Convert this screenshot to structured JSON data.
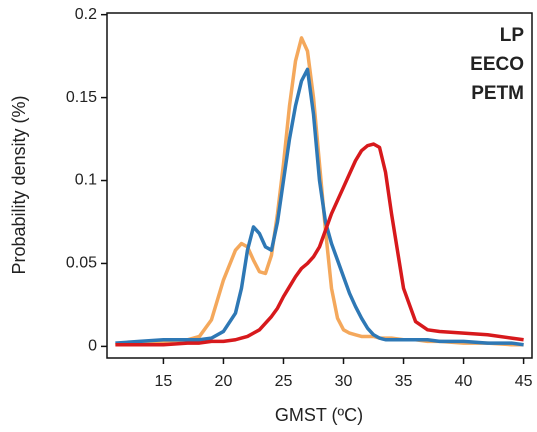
{
  "chart_data": {
    "type": "line",
    "xlabel": "GMST (ºC)",
    "ylabel": "Probability density (%)",
    "x": [
      11,
      13,
      15,
      17,
      18,
      19,
      20,
      21,
      21.5,
      22,
      22.5,
      23,
      23.5,
      24,
      24.5,
      25,
      25.5,
      26,
      26.5,
      27,
      27.5,
      28,
      28.5,
      29,
      29.5,
      30,
      30.5,
      31,
      31.5,
      32,
      32.5,
      33,
      33.5,
      34,
      35,
      36,
      37,
      38,
      40,
      42,
      44,
      45
    ],
    "series": [
      {
        "name": "LP",
        "color": "#f4a85c",
        "values": [
          0.001,
          0.002,
          0.003,
          0.004,
          0.006,
          0.016,
          0.04,
          0.058,
          0.062,
          0.06,
          0.052,
          0.045,
          0.044,
          0.055,
          0.08,
          0.11,
          0.145,
          0.172,
          0.186,
          0.178,
          0.15,
          0.11,
          0.07,
          0.035,
          0.017,
          0.01,
          0.008,
          0.007,
          0.006,
          0.006,
          0.006,
          0.005,
          0.005,
          0.005,
          0.004,
          0.004,
          0.003,
          0.003,
          0.002,
          0.002,
          0.001,
          0.001
        ]
      },
      {
        "name": "EECO",
        "color": "#2e78b5",
        "values": [
          0.002,
          0.003,
          0.004,
          0.004,
          0.004,
          0.005,
          0.009,
          0.02,
          0.035,
          0.058,
          0.072,
          0.068,
          0.06,
          0.058,
          0.075,
          0.1,
          0.125,
          0.145,
          0.16,
          0.167,
          0.14,
          0.1,
          0.075,
          0.062,
          0.052,
          0.042,
          0.032,
          0.024,
          0.017,
          0.011,
          0.007,
          0.005,
          0.004,
          0.004,
          0.004,
          0.004,
          0.004,
          0.003,
          0.003,
          0.002,
          0.002,
          0.001
        ]
      },
      {
        "name": "PETM",
        "color": "#d7191c",
        "values": [
          0.001,
          0.001,
          0.001,
          0.002,
          0.002,
          0.003,
          0.003,
          0.004,
          0.005,
          0.006,
          0.008,
          0.01,
          0.014,
          0.018,
          0.023,
          0.03,
          0.036,
          0.042,
          0.047,
          0.05,
          0.054,
          0.06,
          0.07,
          0.08,
          0.088,
          0.096,
          0.104,
          0.112,
          0.118,
          0.121,
          0.122,
          0.12,
          0.105,
          0.08,
          0.035,
          0.015,
          0.01,
          0.009,
          0.008,
          0.007,
          0.005,
          0.004
        ]
      }
    ],
    "xlim": [
      10.3,
      45.7
    ],
    "ylim": [
      -0.007,
      0.201
    ],
    "xticks": [
      15,
      20,
      25,
      30,
      35,
      40,
      45
    ],
    "yticks": [
      0,
      0.05,
      0.1,
      0.15,
      0.2
    ],
    "legend": "upper right"
  }
}
